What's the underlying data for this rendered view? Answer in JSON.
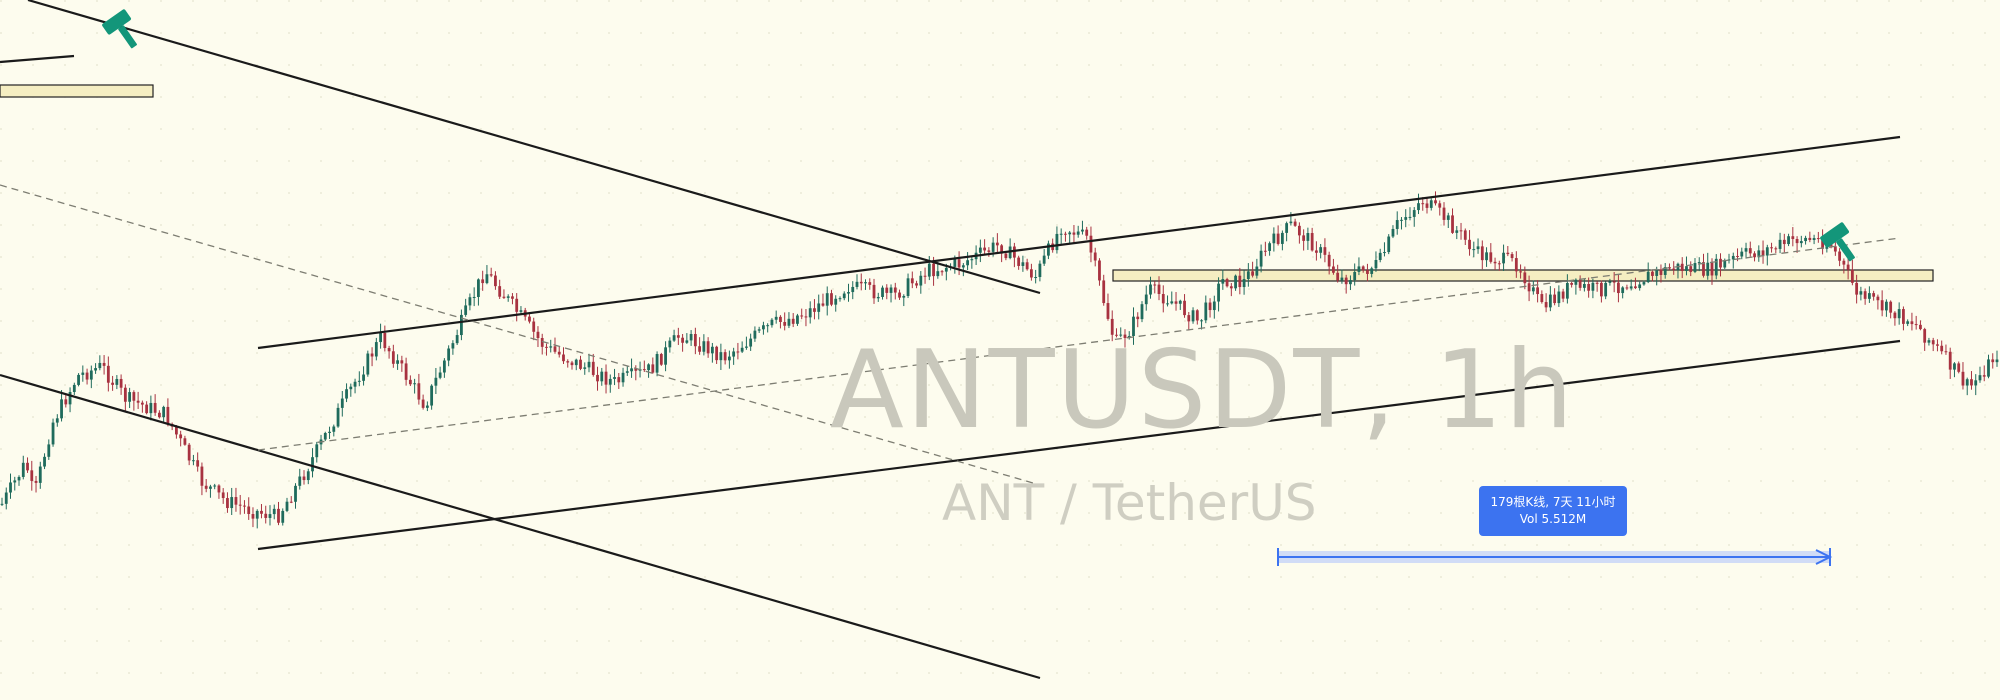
{
  "watermark": {
    "title": "ANTUSDT, 1h",
    "subtitle": "ANT / TetherUS"
  },
  "measure": {
    "bars_text": "179根K线, 7天 11小时",
    "vol_text": "Vol 5.512M",
    "color": "#3c73f0"
  },
  "colors": {
    "background": "#fdfcee",
    "candle_up": "#1f6b5c",
    "candle_down": "#a83240",
    "trendline": "#1a1a1a",
    "zone_fill": "#f5eec2",
    "zone_border": "#222222",
    "marker": "#13967a"
  },
  "icons": [
    "hammer-icon",
    "hammer-icon"
  ],
  "chart_data": {
    "type": "candlestick",
    "symbol": "ANTUSDT",
    "interval": "1h",
    "price_path": [
      [
        0,
        0.05
      ],
      [
        0.012,
        0.18
      ],
      [
        0.016,
        0.07
      ],
      [
        0.025,
        0.3
      ],
      [
        0.038,
        0.45
      ],
      [
        0.05,
        0.48
      ],
      [
        0.062,
        0.38
      ],
      [
        0.082,
        0.33
      ],
      [
        0.1,
        0.12
      ],
      [
        0.112,
        0.06
      ],
      [
        0.125,
        0.03
      ],
      [
        0.138,
        0.01
      ],
      [
        0.15,
        0.13
      ],
      [
        0.16,
        0.24
      ],
      [
        0.174,
        0.4
      ],
      [
        0.19,
        0.57
      ],
      [
        0.212,
        0.36
      ],
      [
        0.242,
        0.78
      ],
      [
        0.272,
        0.54
      ],
      [
        0.307,
        0.43
      ],
      [
        0.325,
        0.47
      ],
      [
        0.34,
        0.58
      ],
      [
        0.362,
        0.51
      ],
      [
        0.386,
        0.61
      ],
      [
        0.404,
        0.65
      ],
      [
        0.424,
        0.73
      ],
      [
        0.447,
        0.7
      ],
      [
        0.464,
        0.78
      ],
      [
        0.48,
        0.8
      ],
      [
        0.5,
        0.86
      ],
      [
        0.518,
        0.76
      ],
      [
        0.531,
        0.92
      ],
      [
        0.544,
        0.88
      ],
      [
        0.558,
        0.55
      ],
      [
        0.566,
        0.6
      ],
      [
        0.575,
        0.72
      ],
      [
        0.585,
        0.69
      ],
      [
        0.6,
        0.62
      ],
      [
        0.612,
        0.75
      ],
      [
        0.622,
        0.74
      ],
      [
        0.634,
        0.85
      ],
      [
        0.646,
        0.92
      ],
      [
        0.658,
        0.86
      ],
      [
        0.671,
        0.75
      ],
      [
        0.69,
        0.8
      ],
      [
        0.7,
        0.93
      ],
      [
        0.712,
        1.0
      ],
      [
        0.724,
        0.94
      ],
      [
        0.74,
        0.83
      ],
      [
        0.76,
        0.8
      ],
      [
        0.772,
        0.66
      ],
      [
        0.786,
        0.73
      ],
      [
        0.8,
        0.72
      ],
      [
        0.815,
        0.74
      ],
      [
        0.838,
        0.79
      ],
      [
        0.855,
        0.78
      ],
      [
        0.874,
        0.83
      ],
      [
        0.888,
        0.85
      ],
      [
        0.9,
        0.88
      ],
      [
        0.916,
        0.87
      ],
      [
        0.93,
        0.71
      ],
      [
        0.944,
        0.66
      ],
      [
        0.958,
        0.62
      ],
      [
        0.972,
        0.52
      ],
      [
        0.986,
        0.41
      ],
      [
        1.0,
        0.52
      ]
    ],
    "annotations": {
      "measurement_bars": 179,
      "measurement_duration": "7天 11小时",
      "measurement_volume": "5.512M"
    }
  }
}
